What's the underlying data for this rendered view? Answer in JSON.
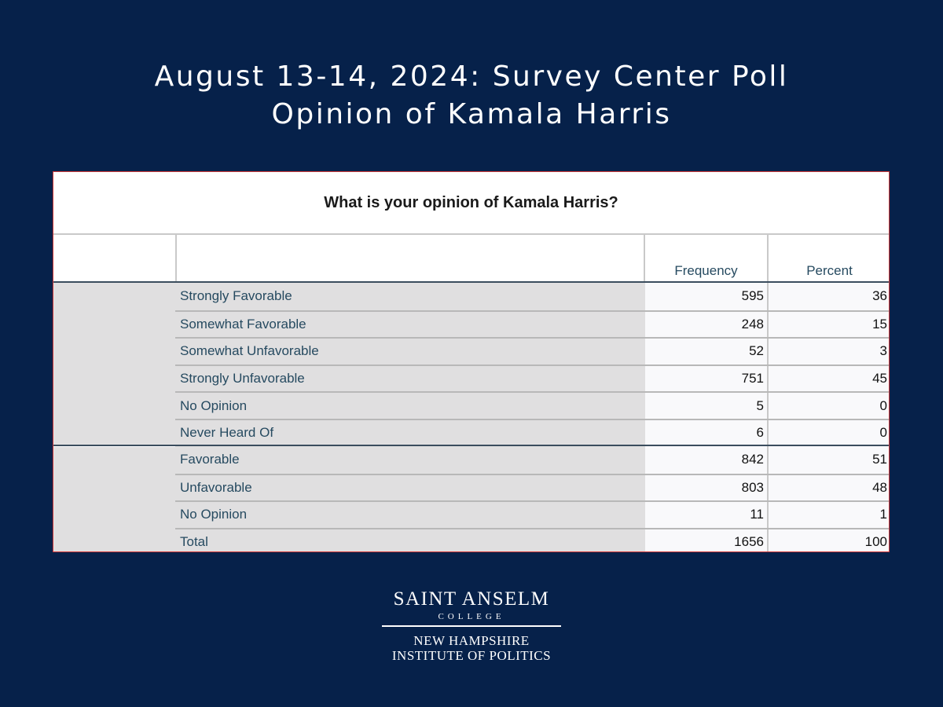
{
  "title": {
    "line1": "August 13-14, 2024: Survey Center Poll",
    "line2": "Opinion of Kamala Harris"
  },
  "table": {
    "caption": "What is your opinion of Kamala Harris?",
    "headers": {
      "frequency": "Frequency",
      "percent": "Percent"
    }
  },
  "chart_data": {
    "type": "table",
    "title": "What is your opinion of Kamala Harris?",
    "columns": [
      "Frequency",
      "Percent"
    ],
    "rows": [
      {
        "label": "Strongly Favorable",
        "frequency": "595",
        "percent": "36"
      },
      {
        "label": "Somewhat Favorable",
        "frequency": "248",
        "percent": "15"
      },
      {
        "label": "Somewhat Unfavorable",
        "frequency": "52",
        "percent": "3"
      },
      {
        "label": "Strongly Unfavorable",
        "frequency": "751",
        "percent": "45"
      },
      {
        "label": "No Opinion",
        "frequency": "5",
        "percent": "0"
      },
      {
        "label": "Never Heard Of",
        "frequency": "6",
        "percent": "0"
      },
      {
        "label": "Favorable",
        "frequency": "842",
        "percent": "51"
      },
      {
        "label": "Unfavorable",
        "frequency": "803",
        "percent": "48"
      },
      {
        "label": "No Opinion",
        "frequency": "11",
        "percent": "1"
      },
      {
        "label": "Total",
        "frequency": "1656",
        "percent": "100"
      }
    ]
  },
  "logo": {
    "name": "SAINT ANSELM",
    "college": "COLLEGE",
    "line1": "NEW HAMPSHIRE",
    "line2": "INSTITUTE OF POLITICS"
  },
  "colors": {
    "background": "#06214a",
    "header_text": "#264a60",
    "label_cell": "#e0dfe0",
    "value_cell": "#f9f9fb",
    "frame_border": "#d23a3a"
  }
}
